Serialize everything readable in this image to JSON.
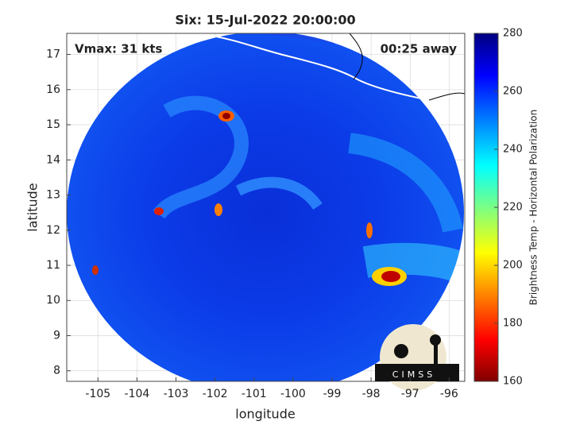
{
  "chart_data": {
    "type": "map",
    "title": "Six: 15-Jul-2022 20:00:00",
    "annotations": [
      "Vmax: 31 kts",
      "00:25 away"
    ],
    "xlabel": "longitude",
    "ylabel": "latitude",
    "xlim": [
      -105.8,
      -95.6
    ],
    "xticks": [
      -105,
      -104,
      -103,
      -102,
      -101,
      -100,
      -99,
      -98,
      -97,
      -96
    ],
    "ylim": [
      7.7,
      17.6
    ],
    "yticks": [
      8,
      9,
      10,
      11,
      12,
      13,
      14,
      15,
      16,
      17
    ],
    "grid": true,
    "colorbar": {
      "label": "Brightness Temp - Horizontal Polarization",
      "lim": [
        160,
        280
      ],
      "ticks": [
        160,
        180,
        200,
        220,
        240,
        260,
        280
      ]
    },
    "logo": "CIMSS"
  }
}
